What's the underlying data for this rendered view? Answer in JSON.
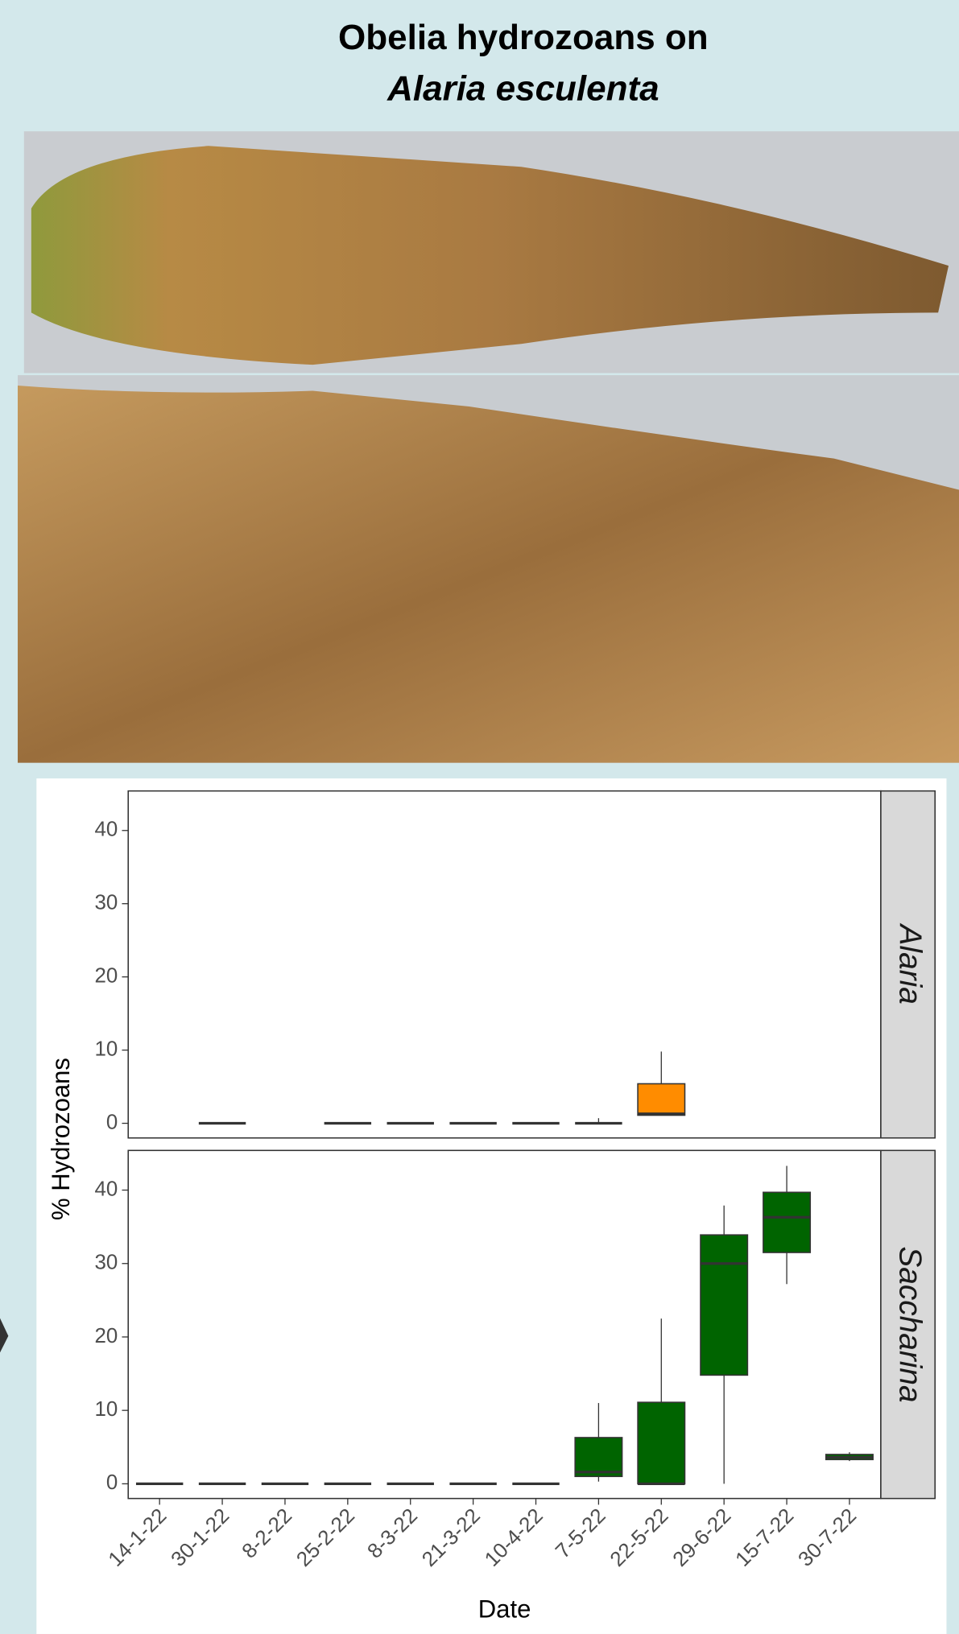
{
  "header": {
    "title_line1": "Obelia hydrozoans on",
    "title_line2": "Alaria esculenta"
  },
  "chart_data": {
    "type": "box",
    "x_label": "Date",
    "y_label": "% Hydrozoans",
    "categories": [
      "14-1-22",
      "30-1-22",
      "8-2-22",
      "25-2-22",
      "8-3-22",
      "21-3-22",
      "10-4-22",
      "7-5-22",
      "22-5-22",
      "29-6-22",
      "15-7-22",
      "30-7-22"
    ],
    "ylim": [
      -2,
      45.4
    ],
    "yticks": [
      0,
      10,
      20,
      30,
      40
    ],
    "panels": [
      {
        "name": "Alaria",
        "color": "#ff8c00",
        "min": [
          null,
          0,
          null,
          0,
          0,
          0,
          0,
          0,
          1.1,
          null,
          null,
          null
        ],
        "q1": [
          null,
          0,
          null,
          0,
          0,
          0,
          0,
          0,
          1.1,
          null,
          null,
          null
        ],
        "median": [
          null,
          0,
          null,
          0,
          0,
          0,
          0,
          0,
          1.3,
          null,
          null,
          null
        ],
        "q3": [
          null,
          0,
          null,
          0,
          0,
          0,
          0,
          0,
          5.4,
          null,
          null,
          null
        ],
        "max": [
          null,
          0,
          null,
          0,
          0,
          0,
          0,
          0.7,
          9.8,
          null,
          null,
          null
        ]
      },
      {
        "name": "Saccharina",
        "color": "#006400",
        "min": [
          0,
          0,
          0,
          0,
          0,
          0,
          0,
          0.3,
          0,
          0,
          27.2,
          3.1
        ],
        "q1": [
          0,
          0,
          0,
          0,
          0,
          0,
          0,
          1.0,
          0,
          14.8,
          31.5,
          3.3
        ],
        "median": [
          0,
          0,
          0,
          0,
          0,
          0,
          0,
          1.6,
          0,
          30.0,
          36.3,
          3.6
        ],
        "q3": [
          0,
          0,
          0,
          0,
          0,
          0,
          0,
          6.3,
          11.1,
          33.9,
          39.7,
          4.0
        ],
        "max": [
          0,
          0,
          0,
          0,
          0,
          0,
          0,
          11.0,
          22.5,
          37.9,
          43.3,
          4.3
        ]
      }
    ]
  }
}
